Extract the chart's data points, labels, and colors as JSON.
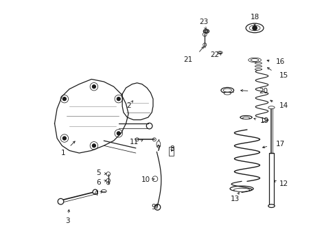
{
  "bg_color": "#ffffff",
  "line_color": "#1a1a1a",
  "fig_width": 4.89,
  "fig_height": 3.6,
  "dpi": 100,
  "font_size": 7.5
}
